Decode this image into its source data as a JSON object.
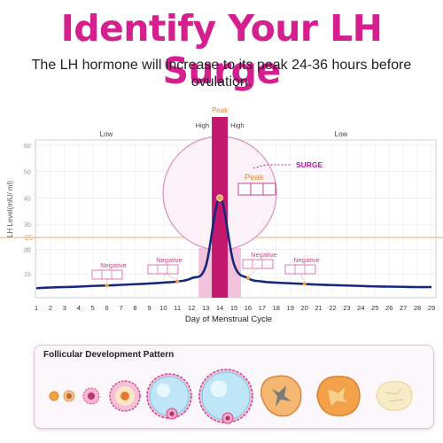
{
  "header": {
    "title": "Identify Your LH Surge",
    "subtitle": "The LH hormone will increase to its peak 24-36 hours before ovulation."
  },
  "chart_data": {
    "type": "line",
    "title": "",
    "xlabel": "Day of  Menstrual Cycle",
    "ylabel": "LH Level(mlU/ ml)",
    "x": [
      1,
      2,
      3,
      4,
      5,
      6,
      7,
      8,
      9,
      10,
      11,
      12,
      13,
      14,
      15,
      16,
      17,
      18,
      19,
      20,
      21,
      22,
      23,
      24,
      25,
      26,
      27,
      28,
      29
    ],
    "series": [
      {
        "values": [
          3.5,
          3.8,
          4,
          4.2,
          4.5,
          4.7,
          5,
          5.3,
          5.6,
          6,
          6.5,
          8,
          13,
          40,
          14,
          8,
          6.5,
          6,
          5.7,
          5.4,
          5.1,
          4.9,
          4.7,
          4.5,
          4.3,
          4.2,
          4.1,
          4,
          4
        ]
      }
    ],
    "xlim": [
      1,
      29
    ],
    "ylim": [
      0,
      60
    ],
    "threshold": 25,
    "grid": true,
    "upper_ticks": [
      "20",
      "30",
      "40",
      "50",
      "60"
    ],
    "lower_ticks": [
      "10",
      "20"
    ],
    "threshold_label": "25",
    "zones": {
      "low_left": "Low",
      "low_right": "Low",
      "high_left": "High",
      "high_right": "High",
      "peak": "Peak"
    },
    "highlight_days": [
      13,
      14,
      15
    ],
    "peak_day": 14,
    "annotations": {
      "surge": "SURGE",
      "peak_label": "Peak",
      "negatives": [
        {
          "text": "Negative",
          "day": 6
        },
        {
          "text": "Negative",
          "day": 11
        },
        {
          "text": "Negative",
          "day": 16
        },
        {
          "text": "Negative",
          "day": 20
        }
      ]
    }
  },
  "follicle_panel": {
    "title": "Follicular Development Pattern",
    "stages": [
      "primordial",
      "primary",
      "secondary",
      "preantral",
      "antral",
      "preovulatory",
      "ovulating",
      "corpus-luteum",
      "corpus-albicans"
    ]
  },
  "colors": {
    "title": "#d61f8f",
    "curve": "#17277a",
    "peak_bar": "#c2186e",
    "highlight": "#f2bbd7",
    "threshold": "#f3a968",
    "marker": "#f0a543",
    "surge": "#a81fa0"
  }
}
